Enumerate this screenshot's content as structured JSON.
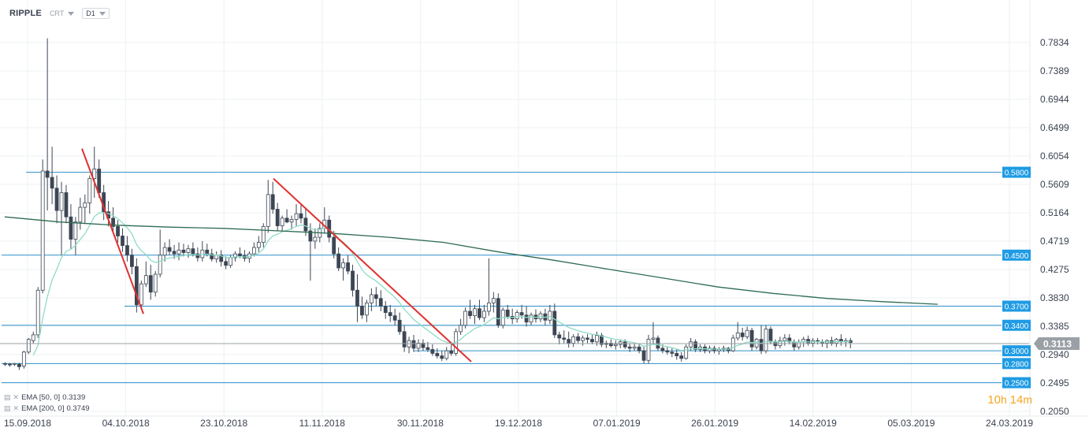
{
  "header": {
    "symbol": "RIPPLE",
    "type": "CRT",
    "timeframe": "D1"
  },
  "legend": [
    {
      "label": "EMA [50, 0]",
      "value": "0.3139"
    },
    {
      "label": "EMA [200, 0]",
      "value": "0.3749"
    }
  ],
  "timer": {
    "hours": "10",
    "h": "h",
    "minutes": "14",
    "m": "m"
  },
  "chart_data": {
    "type": "candlestick",
    "y_ticks": [
      "0.7834",
      "0.7389",
      "0.6944",
      "0.6499",
      "0.6054",
      "0.5609",
      "0.5164",
      "0.4719",
      "0.4275",
      "0.3830",
      "0.3385",
      "0.2940",
      "0.2495",
      "0.2050"
    ],
    "x_ticks": [
      "15.09.2018",
      "04.10.2018",
      "23.10.2018",
      "11.11.2018",
      "30.11.2018",
      "19.12.2018",
      "07.01.2019",
      "26.01.2019",
      "14.02.2019",
      "05.03.2019",
      "24.03.2019"
    ],
    "ylim": [
      0.205,
      0.7834
    ],
    "current_price": "0.3113",
    "levels": [
      {
        "label": "0.5800",
        "value": 0.58
      },
      {
        "label": "0.4500",
        "value": 0.45
      },
      {
        "label": "0.3700",
        "value": 0.37
      },
      {
        "label": "0.3400",
        "value": 0.34
      },
      {
        "label": "0.3000",
        "value": 0.3
      },
      {
        "label": "0.2800",
        "value": 0.28
      },
      {
        "label": "0.2500",
        "value": 0.25
      }
    ],
    "colors": {
      "level": "#2c8fc9",
      "bull": "#ffffff",
      "bear": "#3d4654",
      "ema50": "#8fdcc6",
      "ema200": "#2e6b51",
      "trend": "#e0302e",
      "price": "#9aa0a6"
    }
  }
}
